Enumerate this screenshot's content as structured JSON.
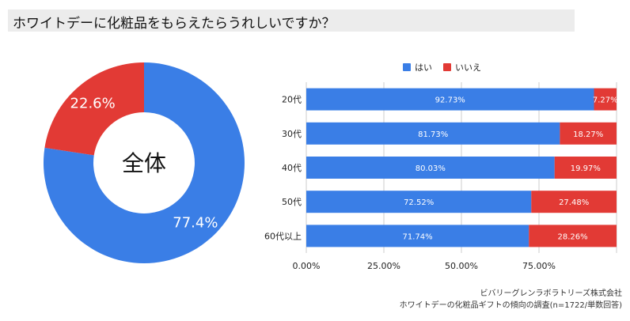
{
  "title": "ホワイトデーに化粧品をもらえたらうれしいですか？",
  "colors": {
    "yes": "#3a7ee6",
    "no": "#e23a35",
    "title_bg": "#ececec",
    "grid": "#cccccc"
  },
  "chart_data": [
    {
      "type": "pie",
      "variant": "donut",
      "center_label": "全体",
      "slices": [
        {
          "label": "はい",
          "value": 77.4,
          "value_label": "77.4%",
          "color": "#3a7ee6"
        },
        {
          "label": "いいえ",
          "value": 22.6,
          "value_label": "22.6%",
          "color": "#e23a35"
        }
      ]
    },
    {
      "type": "bar",
      "orientation": "horizontal",
      "stacked": true,
      "categories": [
        "20代",
        "30代",
        "40代",
        "50代",
        "60代以上"
      ],
      "series": [
        {
          "name": "はい",
          "color": "#3a7ee6",
          "values": [
            92.73,
            81.73,
            80.03,
            72.52,
            71.74
          ],
          "labels": [
            "92.73%",
            "81.73%",
            "80.03%",
            "72.52%",
            "71.74%"
          ]
        },
        {
          "name": "いいえ",
          "color": "#e23a35",
          "values": [
            7.27,
            18.27,
            19.97,
            27.48,
            28.26
          ],
          "labels": [
            "7.27%",
            "18.27%",
            "19.97%",
            "27.48%",
            "28.26%"
          ]
        }
      ],
      "xlim": [
        0,
        100
      ],
      "xticks": [
        0,
        25,
        50,
        75
      ],
      "xtick_labels": [
        "0.00%",
        "25.00%",
        "50.00%",
        "75.00%"
      ],
      "legend_position": "top",
      "grid": true
    }
  ],
  "source": {
    "line1": "ビバリーグレンラボラトリーズ株式会社",
    "line2": "ホワイトデーの化粧品ギフトの傾向の調査(n=1722/単数回答)"
  }
}
